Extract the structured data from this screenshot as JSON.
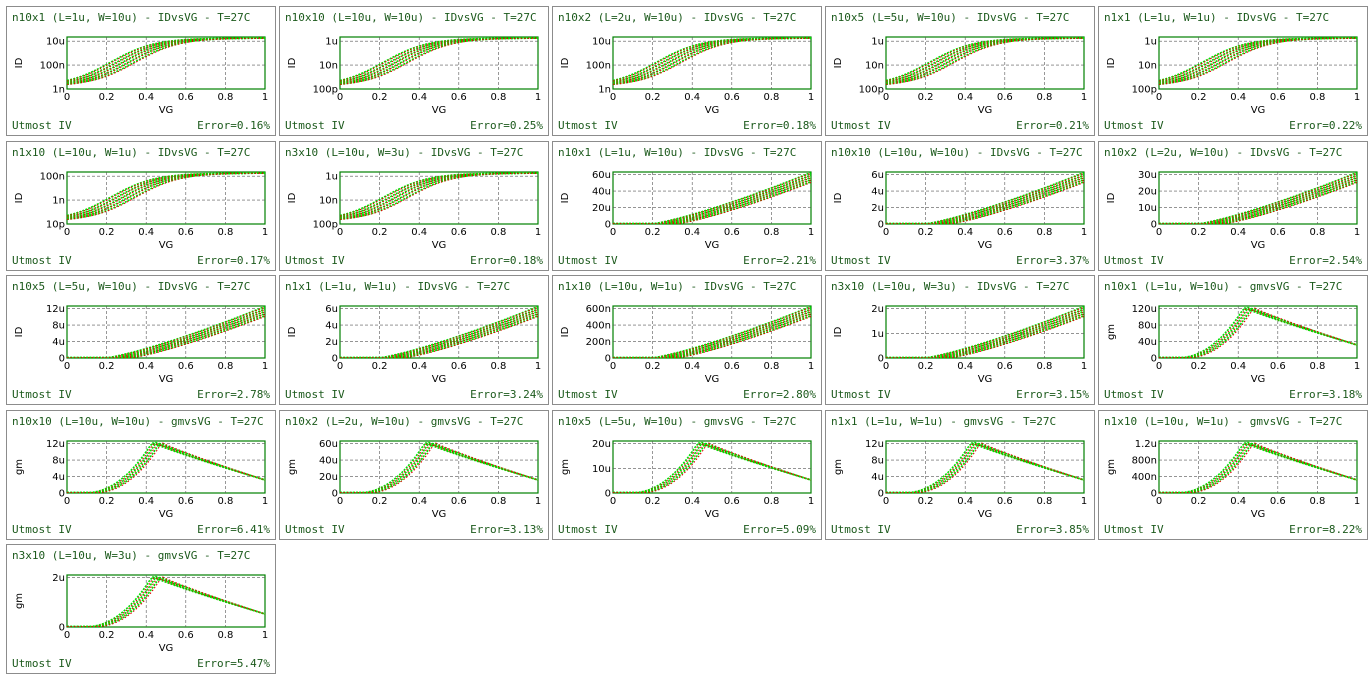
{
  "footer_label": "Utmost IV",
  "colors": {
    "measured": "#00e000",
    "simulated": "#e00000",
    "text": "#1c5a1c",
    "frame": "#000000",
    "plot_frame": "#008000"
  },
  "chart_data": [
    {
      "type": "line",
      "title": "n10x1 (L=1u, W=10u) - IDvsVG - T=27C",
      "xlabel": "VG",
      "ylabel": "ID",
      "scale": "log",
      "curve": "id",
      "yticks": [
        "1n",
        "100n",
        "10u"
      ],
      "xticks": [
        "0",
        "0.2",
        "0.4",
        "0.6",
        "0.8",
        "1"
      ],
      "xlim": [
        0,
        1
      ],
      "error": "Error=0.16%"
    },
    {
      "type": "line",
      "title": "n10x10 (L=10u, W=10u) - IDvsVG - T=27C",
      "xlabel": "VG",
      "ylabel": "ID",
      "scale": "log",
      "curve": "id",
      "yticks": [
        "100p",
        "10n",
        "1u"
      ],
      "xticks": [
        "0",
        "0.2",
        "0.4",
        "0.6",
        "0.8",
        "1"
      ],
      "xlim": [
        0,
        1
      ],
      "error": "Error=0.25%"
    },
    {
      "type": "line",
      "title": "n10x2 (L=2u, W=10u) - IDvsVG - T=27C",
      "xlabel": "VG",
      "ylabel": "ID",
      "scale": "log",
      "curve": "id",
      "yticks": [
        "1n",
        "100n",
        "10u"
      ],
      "xticks": [
        "0",
        "0.2",
        "0.4",
        "0.6",
        "0.8",
        "1"
      ],
      "xlim": [
        0,
        1
      ],
      "error": "Error=0.18%"
    },
    {
      "type": "line",
      "title": "n10x5 (L=5u, W=10u) - IDvsVG - T=27C",
      "xlabel": "VG",
      "ylabel": "ID",
      "scale": "log",
      "curve": "id",
      "yticks": [
        "100p",
        "10n",
        "1u"
      ],
      "xticks": [
        "0",
        "0.2",
        "0.4",
        "0.6",
        "0.8",
        "1"
      ],
      "xlim": [
        0,
        1
      ],
      "error": "Error=0.21%"
    },
    {
      "type": "line",
      "title": "n1x1 (L=1u, W=1u) - IDvsVG - T=27C",
      "xlabel": "VG",
      "ylabel": "ID",
      "scale": "log",
      "curve": "id",
      "yticks": [
        "100p",
        "10n",
        "1u"
      ],
      "xticks": [
        "0",
        "0.2",
        "0.4",
        "0.6",
        "0.8",
        "1"
      ],
      "xlim": [
        0,
        1
      ],
      "error": "Error=0.22%"
    },
    {
      "type": "line",
      "title": "n1x10 (L=10u, W=1u) - IDvsVG - T=27C",
      "xlabel": "VG",
      "ylabel": "ID",
      "scale": "log",
      "curve": "id",
      "yticks": [
        "10p",
        "1n",
        "100n"
      ],
      "xticks": [
        "0",
        "0.2",
        "0.4",
        "0.6",
        "0.8",
        "1"
      ],
      "xlim": [
        0,
        1
      ],
      "error": "Error=0.17%"
    },
    {
      "type": "line",
      "title": "n3x10 (L=10u, W=3u) - IDvsVG - T=27C",
      "xlabel": "VG",
      "ylabel": "ID",
      "scale": "log",
      "curve": "id",
      "yticks": [
        "100p",
        "10n",
        "1u"
      ],
      "xticks": [
        "0",
        "0.2",
        "0.4",
        "0.6",
        "0.8",
        "1"
      ],
      "xlim": [
        0,
        1
      ],
      "error": "Error=0.18%"
    },
    {
      "type": "line",
      "title": "n10x1 (L=1u, W=10u) - IDvsVG - T=27C",
      "xlabel": "VG",
      "ylabel": "ID",
      "scale": "linear",
      "curve": "idlin",
      "yticks": [
        "0",
        "20u",
        "40u",
        "60u"
      ],
      "xticks": [
        "0",
        "0.2",
        "0.4",
        "0.6",
        "0.8",
        "1"
      ],
      "xlim": [
        0,
        1
      ],
      "error": "Error=2.21%"
    },
    {
      "type": "line",
      "title": "n10x10 (L=10u, W=10u) - IDvsVG - T=27C",
      "xlabel": "VG",
      "ylabel": "ID",
      "scale": "linear",
      "curve": "idlin",
      "yticks": [
        "0",
        "2u",
        "4u",
        "6u"
      ],
      "xticks": [
        "0",
        "0.2",
        "0.4",
        "0.6",
        "0.8",
        "1"
      ],
      "xlim": [
        0,
        1
      ],
      "error": "Error=3.37%"
    },
    {
      "type": "line",
      "title": "n10x2 (L=2u, W=10u) - IDvsVG - T=27C",
      "xlabel": "VG",
      "ylabel": "ID",
      "scale": "linear",
      "curve": "idlin",
      "yticks": [
        "0",
        "10u",
        "20u",
        "30u"
      ],
      "xticks": [
        "0",
        "0.2",
        "0.4",
        "0.6",
        "0.8",
        "1"
      ],
      "xlim": [
        0,
        1
      ],
      "error": "Error=2.54%"
    },
    {
      "type": "line",
      "title": "n10x5 (L=5u, W=10u) - IDvsVG - T=27C",
      "xlabel": "VG",
      "ylabel": "ID",
      "scale": "linear",
      "curve": "idlin",
      "yticks": [
        "0",
        "4u",
        "8u",
        "12u"
      ],
      "xticks": [
        "0",
        "0.2",
        "0.4",
        "0.6",
        "0.8",
        "1"
      ],
      "xlim": [
        0,
        1
      ],
      "error": "Error=2.78%"
    },
    {
      "type": "line",
      "title": "n1x1 (L=1u, W=1u) - IDvsVG - T=27C",
      "xlabel": "VG",
      "ylabel": "ID",
      "scale": "linear",
      "curve": "idlin",
      "yticks": [
        "0",
        "2u",
        "4u",
        "6u"
      ],
      "xticks": [
        "0",
        "0.2",
        "0.4",
        "0.6",
        "0.8",
        "1"
      ],
      "xlim": [
        0,
        1
      ],
      "error": "Error=3.24%"
    },
    {
      "type": "line",
      "title": "n1x10 (L=10u, W=1u) - IDvsVG - T=27C",
      "xlabel": "VG",
      "ylabel": "ID",
      "scale": "linear",
      "curve": "idlin",
      "yticks": [
        "0",
        "200n",
        "400n",
        "600n"
      ],
      "xticks": [
        "0",
        "0.2",
        "0.4",
        "0.6",
        "0.8",
        "1"
      ],
      "xlim": [
        0,
        1
      ],
      "error": "Error=2.80%"
    },
    {
      "type": "line",
      "title": "n3x10 (L=10u, W=3u) - IDvsVG - T=27C",
      "xlabel": "VG",
      "ylabel": "ID",
      "scale": "linear",
      "curve": "idlin",
      "yticks": [
        "0",
        "1u",
        "2u"
      ],
      "xticks": [
        "0",
        "0.2",
        "0.4",
        "0.6",
        "0.8",
        "1"
      ],
      "xlim": [
        0,
        1
      ],
      "error": "Error=3.15%"
    },
    {
      "type": "line",
      "title": "n10x1 (L=1u, W=10u) - gmvsVG - T=27C",
      "xlabel": "VG",
      "ylabel": "gm",
      "scale": "linear",
      "curve": "gm",
      "yticks": [
        "0",
        "40u",
        "80u",
        "120u"
      ],
      "xticks": [
        "0",
        "0.2",
        "0.4",
        "0.6",
        "0.8",
        "1"
      ],
      "xlim": [
        0,
        1
      ],
      "error": "Error=3.18%"
    },
    {
      "type": "line",
      "title": "n10x10 (L=10u, W=10u) - gmvsVG - T=27C",
      "xlabel": "VG",
      "ylabel": "gm",
      "scale": "linear",
      "curve": "gm",
      "yticks": [
        "0",
        "4u",
        "8u",
        "12u"
      ],
      "xticks": [
        "0",
        "0.2",
        "0.4",
        "0.6",
        "0.8",
        "1"
      ],
      "xlim": [
        0,
        1
      ],
      "error": "Error=6.41%"
    },
    {
      "type": "line",
      "title": "n10x2 (L=2u, W=10u) - gmvsVG - T=27C",
      "xlabel": "VG",
      "ylabel": "gm",
      "scale": "linear",
      "curve": "gm",
      "yticks": [
        "0",
        "20u",
        "40u",
        "60u"
      ],
      "xticks": [
        "0",
        "0.2",
        "0.4",
        "0.6",
        "0.8",
        "1"
      ],
      "xlim": [
        0,
        1
      ],
      "error": "Error=3.13%"
    },
    {
      "type": "line",
      "title": "n10x5 (L=5u, W=10u) - gmvsVG - T=27C",
      "xlabel": "VG",
      "ylabel": "gm",
      "scale": "linear",
      "curve": "gm",
      "yticks": [
        "0",
        "10u",
        "20u"
      ],
      "xticks": [
        "0",
        "0.2",
        "0.4",
        "0.6",
        "0.8",
        "1"
      ],
      "xlim": [
        0,
        1
      ],
      "error": "Error=5.09%"
    },
    {
      "type": "line",
      "title": "n1x1 (L=1u, W=1u) - gmvsVG - T=27C",
      "xlabel": "VG",
      "ylabel": "gm",
      "scale": "linear",
      "curve": "gm",
      "yticks": [
        "0",
        "4u",
        "8u",
        "12u"
      ],
      "xticks": [
        "0",
        "0.2",
        "0.4",
        "0.6",
        "0.8",
        "1"
      ],
      "xlim": [
        0,
        1
      ],
      "error": "Error=3.85%"
    },
    {
      "type": "line",
      "title": "n1x10 (L=10u, W=1u) - gmvsVG - T=27C",
      "xlabel": "VG",
      "ylabel": "gm",
      "scale": "linear",
      "curve": "gm",
      "yticks": [
        "0",
        "400n",
        "800n",
        "1.2u"
      ],
      "xticks": [
        "0",
        "0.2",
        "0.4",
        "0.6",
        "0.8",
        "1"
      ],
      "xlim": [
        0,
        1
      ],
      "error": "Error=8.22%"
    },
    {
      "type": "line",
      "title": "n3x10 (L=10u, W=3u) - gmvsVG - T=27C",
      "xlabel": "VG",
      "ylabel": "gm",
      "scale": "linear",
      "curve": "gm",
      "yticks": [
        "0",
        "2u"
      ],
      "xticks": [
        "0",
        "0.2",
        "0.4",
        "0.6",
        "0.8",
        "1"
      ],
      "xlim": [
        0,
        1
      ],
      "error": "Error=5.47%"
    }
  ]
}
